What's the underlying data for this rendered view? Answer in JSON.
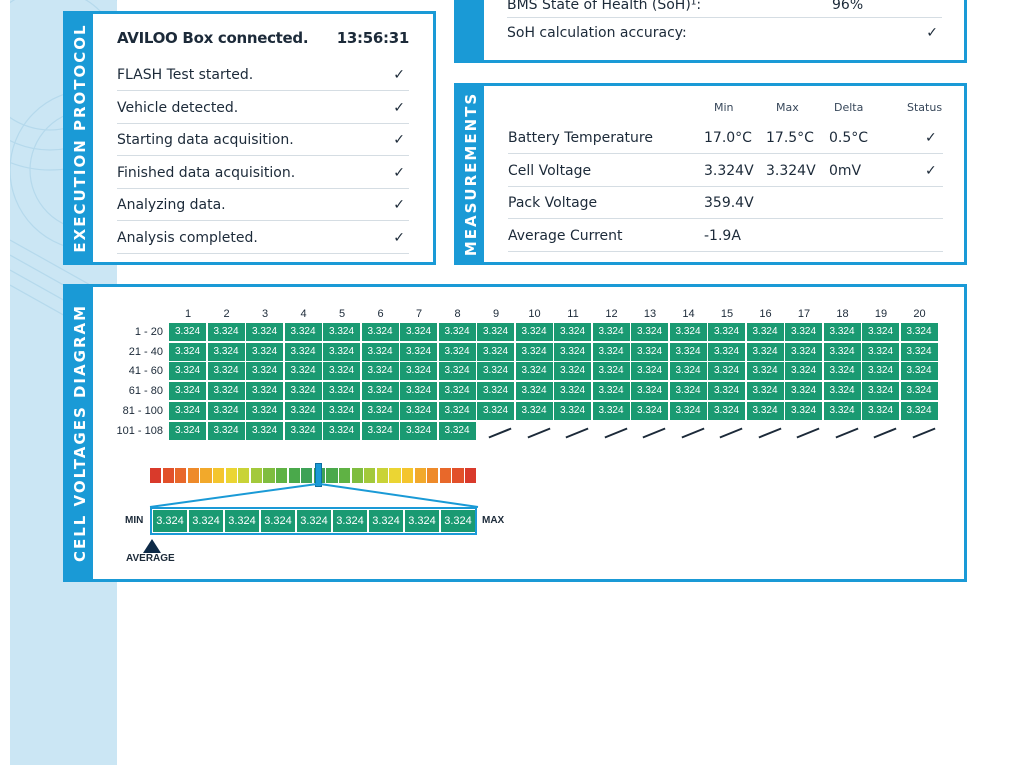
{
  "top_partial": {
    "bms_label": "BMS State of Health (SoH)¹:",
    "bms_value": "96%",
    "soh_accuracy_label": "SoH calculation accuracy:",
    "soh_accuracy_status": "✓"
  },
  "execution": {
    "title": "EXECUTION PROTOCOL",
    "header": "AVILOO Box connected.",
    "time": "13:56:31",
    "steps": [
      {
        "label": "FLASH Test started.",
        "status": "✓"
      },
      {
        "label": "Vehicle detected.",
        "status": "✓"
      },
      {
        "label": "Starting data acquisition.",
        "status": "✓"
      },
      {
        "label": "Finished data acquisition.",
        "status": "✓"
      },
      {
        "label": "Analyzing data.",
        "status": "✓"
      },
      {
        "label": "Analysis completed.",
        "status": "✓"
      }
    ]
  },
  "measurements": {
    "title": "MEASUREMENTS",
    "headers": {
      "min": "Min",
      "max": "Max",
      "delta": "Delta",
      "status": "Status"
    },
    "rows": [
      {
        "label": "Battery Temperature",
        "min": "17.0°C",
        "max": "17.5°C",
        "delta": "0.5°C",
        "status": "✓"
      },
      {
        "label": "Cell Voltage",
        "min": "3.324V",
        "max": "3.324V",
        "delta": "0mV",
        "status": "✓"
      },
      {
        "label": "Pack Voltage",
        "min": "359.4V",
        "max": "",
        "delta": "",
        "status": ""
      },
      {
        "label": "Average Current",
        "min": "-1.9A",
        "max": "",
        "delta": "",
        "status": ""
      }
    ]
  },
  "cell_diagram": {
    "title": "CELL VOLTAGES DIAGRAM",
    "column_headers": [
      "1",
      "2",
      "3",
      "4",
      "5",
      "6",
      "7",
      "8",
      "9",
      "10",
      "11",
      "12",
      "13",
      "14",
      "15",
      "16",
      "17",
      "18",
      "19",
      "20"
    ],
    "row_headers": [
      "1 - 20",
      "21 - 40",
      "41 - 60",
      "61 - 80",
      "81 - 100",
      "101 - 108"
    ],
    "cell_value": "3.324",
    "cells_per_row": [
      20,
      20,
      20,
      20,
      20,
      8
    ],
    "scale_colors": [
      "#d93a2b",
      "#e2502a",
      "#e8682a",
      "#ee8a2a",
      "#f2a92b",
      "#f4c52d",
      "#ebd533",
      "#c9d337",
      "#a3c93b",
      "#7fbd3f",
      "#5fb244",
      "#4aa94b",
      "#3ea257",
      "#3ea257",
      "#4aa94b",
      "#5fb244",
      "#7fbd3f",
      "#a3c93b",
      "#c9d337",
      "#ebd533",
      "#f4c52d",
      "#f2a92b",
      "#ee8a2a",
      "#e8682a",
      "#e2502a",
      "#d93a2b"
    ],
    "zoom_values": [
      "3.324",
      "3.324",
      "3.324",
      "3.324",
      "3.324",
      "3.324",
      "3.324",
      "3.324",
      "3.324"
    ],
    "min_label": "MIN",
    "max_label": "MAX",
    "average_label": "AVERAGE"
  }
}
